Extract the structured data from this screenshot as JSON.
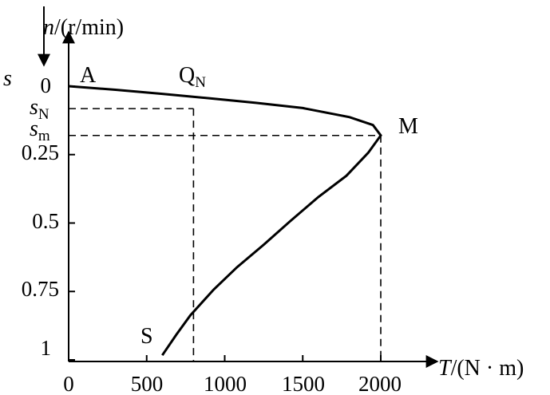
{
  "axes": {
    "y_axis_label": {
      "var": "n",
      "unit": "/(r/min)"
    },
    "s_axis_label": "s",
    "x_axis_label": {
      "var": "T",
      "unit": "/(N · m)"
    }
  },
  "x_ticks": [
    "0",
    "500",
    "1000",
    "1500",
    "2000"
  ],
  "s_ticks": [
    "0",
    "0.25",
    "0.5",
    "0.75",
    "1"
  ],
  "slip_marks": {
    "sN": {
      "main": "s",
      "sub": "N"
    },
    "sm": {
      "main": "s",
      "sub": "m"
    }
  },
  "points": {
    "A": "A",
    "QN": {
      "main": "Q",
      "sub": "N"
    },
    "M": "M",
    "S": "S"
  },
  "chart_data": {
    "type": "line",
    "xlabel": "T/(N · m)",
    "ylabel": "n/(r/min)",
    "x_ticks": [
      0,
      500,
      1000,
      1500,
      2000
    ],
    "s_ticks": [
      0,
      0.25,
      0.5,
      0.75,
      1
    ],
    "curve": {
      "T": [
        0,
        300,
        600,
        900,
        1200,
        1500,
        1800,
        1950,
        2000,
        1920,
        1780,
        1600,
        1420,
        1250,
        1080,
        930,
        780,
        690,
        600
      ],
      "s": [
        0,
        0.013,
        0.028,
        0.044,
        0.061,
        0.08,
        0.113,
        0.142,
        0.18,
        0.243,
        0.327,
        0.405,
        0.493,
        0.579,
        0.661,
        0.743,
        0.837,
        0.908,
        0.983
      ]
    },
    "dashed_guides": {
      "sN": 0.082,
      "sm": 0.18,
      "T_N": 800,
      "T_max": 2000
    }
  }
}
